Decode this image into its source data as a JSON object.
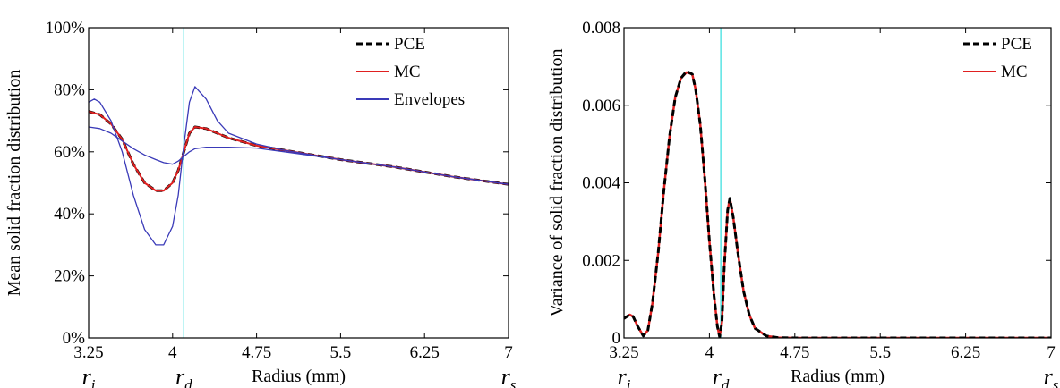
{
  "chart_data": [
    {
      "type": "line",
      "title": "",
      "xlabel": "Radius (mm)",
      "ylabel": "Mean solid fraction distribution",
      "xlim": [
        3.25,
        7
      ],
      "ylim": [
        0,
        1
      ],
      "xticks": [
        {
          "value": 3.25,
          "label": "3.25"
        },
        {
          "value": 4,
          "label": "4"
        },
        {
          "value": 4.75,
          "label": "4.75"
        },
        {
          "value": 5.5,
          "label": "5.5"
        },
        {
          "value": 6.25,
          "label": "6.25"
        },
        {
          "value": 7,
          "label": "7"
        }
      ],
      "yticks": [
        {
          "value": 0,
          "label": "0%"
        },
        {
          "value": 0.2,
          "label": "20%"
        },
        {
          "value": 0.4,
          "label": "40%"
        },
        {
          "value": 0.6,
          "label": "60%"
        },
        {
          "value": 0.8,
          "label": "80%"
        },
        {
          "value": 1,
          "label": "100%"
        }
      ],
      "radius_labels": [
        {
          "value": 3.25,
          "base": "r",
          "sub": "i"
        },
        {
          "value": 4.1,
          "base": "r",
          "sub": "d"
        },
        {
          "value": 7,
          "base": "r",
          "sub": "s"
        }
      ],
      "vline": {
        "x": 4.1,
        "color": "#40e0e0"
      },
      "legend": {
        "position": "top-right",
        "entries": [
          {
            "name": "PCE",
            "color": "#000000",
            "dash": true
          },
          {
            "name": "MC",
            "color": "#e02020",
            "dash": false
          },
          {
            "name": "Envelopes",
            "color": "#3a3ab8",
            "dash": false
          }
        ]
      },
      "series": [
        {
          "name": "PCE",
          "color": "#000000",
          "dash": true,
          "width": 3,
          "x": [
            3.25,
            3.35,
            3.45,
            3.55,
            3.65,
            3.75,
            3.85,
            3.92,
            4.0,
            4.05,
            4.1,
            4.15,
            4.2,
            4.3,
            4.4,
            4.5,
            4.75,
            5.0,
            5.5,
            6.0,
            6.5,
            7.0
          ],
          "y": [
            0.73,
            0.72,
            0.69,
            0.64,
            0.56,
            0.5,
            0.475,
            0.475,
            0.5,
            0.54,
            0.6,
            0.66,
            0.68,
            0.675,
            0.66,
            0.645,
            0.62,
            0.605,
            0.575,
            0.55,
            0.52,
            0.495
          ]
        },
        {
          "name": "MC",
          "color": "#e02020",
          "dash": false,
          "width": 2,
          "x": [
            3.25,
            3.35,
            3.45,
            3.55,
            3.65,
            3.75,
            3.85,
            3.92,
            4.0,
            4.05,
            4.1,
            4.15,
            4.2,
            4.3,
            4.4,
            4.5,
            4.75,
            5.0,
            5.5,
            6.0,
            6.5,
            7.0
          ],
          "y": [
            0.73,
            0.72,
            0.69,
            0.64,
            0.56,
            0.5,
            0.475,
            0.475,
            0.5,
            0.54,
            0.6,
            0.66,
            0.68,
            0.675,
            0.66,
            0.645,
            0.62,
            0.605,
            0.575,
            0.55,
            0.52,
            0.495
          ]
        },
        {
          "name": "Envelopes",
          "color": "#3a3ab8",
          "dash": false,
          "width": 1.3,
          "x": [
            3.25,
            3.3,
            3.35,
            3.45,
            3.55,
            3.65,
            3.75,
            3.85,
            3.92,
            4.0,
            4.05,
            4.1,
            4.15,
            4.2,
            4.3,
            4.4,
            4.5,
            4.75,
            5.0,
            5.5,
            6.0,
            6.5,
            7.0
          ],
          "y": [
            0.76,
            0.77,
            0.76,
            0.7,
            0.6,
            0.46,
            0.35,
            0.3,
            0.3,
            0.36,
            0.46,
            0.62,
            0.76,
            0.81,
            0.77,
            0.7,
            0.66,
            0.625,
            0.605,
            0.575,
            0.55,
            0.52,
            0.495
          ]
        },
        {
          "name": "Envelopes",
          "color": "#3a3ab8",
          "dash": false,
          "width": 1.3,
          "x": [
            3.25,
            3.35,
            3.45,
            3.55,
            3.65,
            3.75,
            3.85,
            3.92,
            4.0,
            4.05,
            4.1,
            4.15,
            4.2,
            4.3,
            4.4,
            4.5,
            4.75,
            5.0,
            5.5,
            6.0,
            6.5,
            7.0
          ],
          "y": [
            0.68,
            0.675,
            0.66,
            0.635,
            0.61,
            0.59,
            0.575,
            0.565,
            0.56,
            0.57,
            0.585,
            0.6,
            0.61,
            0.615,
            0.615,
            0.615,
            0.612,
            0.6,
            0.575,
            0.55,
            0.52,
            0.495
          ]
        }
      ]
    },
    {
      "type": "line",
      "title": "",
      "xlabel": "Radius (mm)",
      "ylabel": "Variance of solid fraction distribution",
      "xlim": [
        3.25,
        7
      ],
      "ylim": [
        0,
        0.008
      ],
      "xticks": [
        {
          "value": 3.25,
          "label": "3.25"
        },
        {
          "value": 4,
          "label": "4"
        },
        {
          "value": 4.75,
          "label": "4.75"
        },
        {
          "value": 5.5,
          "label": "5.5"
        },
        {
          "value": 6.25,
          "label": "6.25"
        },
        {
          "value": 7,
          "label": "7"
        }
      ],
      "yticks": [
        {
          "value": 0,
          "label": "0"
        },
        {
          "value": 0.002,
          "label": "0.002"
        },
        {
          "value": 0.004,
          "label": "0.004"
        },
        {
          "value": 0.006,
          "label": "0.006"
        },
        {
          "value": 0.008,
          "label": "0.008"
        }
      ],
      "radius_labels": [
        {
          "value": 3.25,
          "base": "r",
          "sub": "i"
        },
        {
          "value": 4.1,
          "base": "r",
          "sub": "d"
        },
        {
          "value": 7,
          "base": "r",
          "sub": "s"
        }
      ],
      "vline": {
        "x": 4.1,
        "color": "#40e0e0"
      },
      "legend": {
        "position": "top-right",
        "entries": [
          {
            "name": "PCE",
            "color": "#000000",
            "dash": true
          },
          {
            "name": "MC",
            "color": "#e02020",
            "dash": false
          }
        ]
      },
      "series": [
        {
          "name": "MC",
          "color": "#e02020",
          "dash": false,
          "width": 2.5,
          "x": [
            3.25,
            3.3,
            3.33,
            3.37,
            3.42,
            3.46,
            3.5,
            3.55,
            3.6,
            3.65,
            3.7,
            3.75,
            3.8,
            3.85,
            3.88,
            3.92,
            3.96,
            4.0,
            4.04,
            4.07,
            4.09,
            4.11,
            4.13,
            4.16,
            4.18,
            4.21,
            4.25,
            4.3,
            4.35,
            4.4,
            4.5,
            4.6,
            4.75,
            5.0,
            5.5,
            6.0,
            7.0
          ],
          "y": [
            0.0005,
            0.0006,
            0.00055,
            0.0003,
            5e-05,
            0.0002,
            0.0009,
            0.0022,
            0.0038,
            0.0052,
            0.0062,
            0.0067,
            0.00685,
            0.0068,
            0.0064,
            0.0055,
            0.0041,
            0.0025,
            0.0011,
            0.0003,
            3e-05,
            0.0004,
            0.0018,
            0.0033,
            0.0036,
            0.0031,
            0.0022,
            0.0012,
            0.0006,
            0.00025,
            5e-05,
            1e-05,
            0,
            0,
            0,
            0,
            0
          ]
        },
        {
          "name": "PCE",
          "color": "#000000",
          "dash": true,
          "width": 3,
          "x": [
            3.25,
            3.3,
            3.33,
            3.37,
            3.42,
            3.46,
            3.5,
            3.55,
            3.6,
            3.65,
            3.7,
            3.75,
            3.8,
            3.85,
            3.88,
            3.92,
            3.96,
            4.0,
            4.04,
            4.07,
            4.09,
            4.11,
            4.13,
            4.16,
            4.18,
            4.21,
            4.25,
            4.3,
            4.35,
            4.4,
            4.5,
            4.6,
            4.75,
            5.0,
            5.5,
            6.0,
            7.0
          ],
          "y": [
            0.0005,
            0.0006,
            0.00055,
            0.0003,
            5e-05,
            0.0002,
            0.0009,
            0.0022,
            0.0038,
            0.0052,
            0.0062,
            0.0067,
            0.00688,
            0.0068,
            0.0064,
            0.0055,
            0.0041,
            0.0025,
            0.0011,
            0.0003,
            3e-05,
            0.0004,
            0.0018,
            0.0033,
            0.0036,
            0.0031,
            0.0022,
            0.0012,
            0.0006,
            0.00025,
            5e-05,
            1e-05,
            0,
            0,
            0,
            0,
            0
          ]
        }
      ]
    }
  ]
}
